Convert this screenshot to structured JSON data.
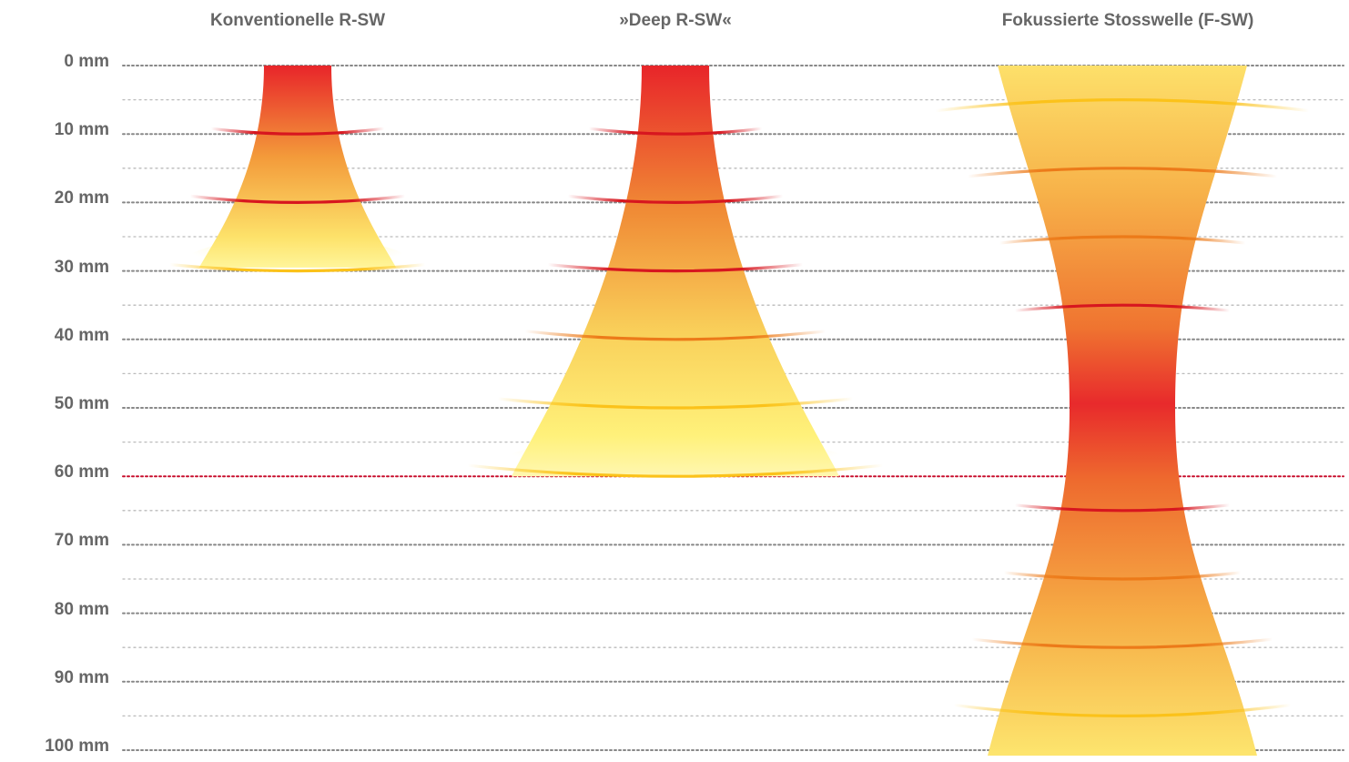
{
  "columns": [
    {
      "title": "Konventionelle R-SW",
      "type": "radial",
      "penetration_mm": 30,
      "wave_depths_mm": [
        10,
        20,
        30
      ]
    },
    {
      "title": "»Deep R-SW«",
      "type": "radial",
      "penetration_mm": 60,
      "wave_depths_mm": [
        10,
        20,
        30,
        40,
        50,
        60
      ]
    },
    {
      "title": "Fokussierte Stosswelle (F-SW)",
      "type": "focused",
      "focus_mm": 50,
      "wave_depths_mm": [
        5,
        15,
        25,
        35,
        65,
        75,
        85,
        95
      ]
    }
  ],
  "depth_axis": {
    "labels": [
      "0 mm",
      "10 mm",
      "20 mm",
      "30 mm",
      "40 mm",
      "50 mm",
      "60 mm",
      "70 mm",
      "80 mm",
      "90 mm",
      "100 mm"
    ],
    "step_mm": 10,
    "max_mm": 100,
    "highlight_mm": 60
  },
  "colors": {
    "label_text": "#666666",
    "grid_major": "#888888",
    "grid_minor": "#bbbbbb",
    "highlight_line": "#c8102e",
    "wave_red": "#d7161f",
    "wave_orange": "#ec7a19",
    "wave_yellow": "#fbc21a",
    "fill_red": "#e8252a",
    "fill_orange": "#f07f2e",
    "fill_yellow": "#fff36b"
  }
}
